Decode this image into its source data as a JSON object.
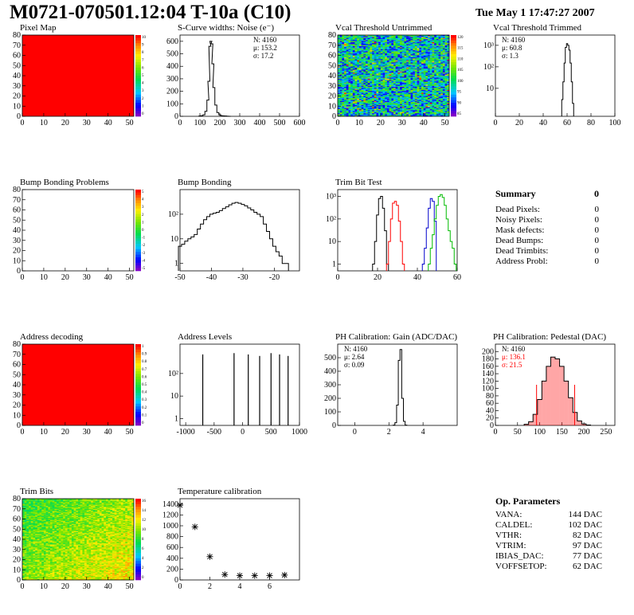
{
  "header": {
    "title": "M0721-070501.12:04 T-10a (C10)",
    "datestamp": "Tue May  1 17:47:27 2007"
  },
  "colors": {
    "map_red": "#ff0000",
    "red_series": "#ff0000",
    "blue_series": "#0000cc",
    "green_series": "#00bb00"
  },
  "summary": {
    "title": "Summary",
    "total": "0",
    "rows": [
      {
        "label": "Dead Pixels:",
        "value": "0"
      },
      {
        "label": "Noisy Pixels:",
        "value": "0"
      },
      {
        "label": "Mask defects:",
        "value": "0"
      },
      {
        "label": "Dead Bumps:",
        "value": "0"
      },
      {
        "label": "Dead Trimbits:",
        "value": "0"
      },
      {
        "label": "Address Probl:",
        "value": "0"
      }
    ]
  },
  "op_params": {
    "title": "Op. Parameters",
    "rows": [
      {
        "label": "VANA:",
        "value": "144 DAC"
      },
      {
        "label": "CALDEL:",
        "value": "102 DAC"
      },
      {
        "label": "VTHR:",
        "value": "82 DAC"
      },
      {
        "label": "VTRIM:",
        "value": "97 DAC"
      },
      {
        "label": "IBIAS_DAC:",
        "value": "77 DAC"
      },
      {
        "label": "VOFFSETOP:",
        "value": "62 DAC"
      }
    ]
  },
  "chart_data": [
    {
      "id": "pixel_map",
      "type": "heatmap",
      "title": "Pixel Map",
      "fill": "uniform",
      "color": "#ff0000",
      "xlim": [
        0,
        52
      ],
      "ylim": [
        0,
        80
      ],
      "x_ticks": [
        0,
        10,
        20,
        30,
        40,
        50
      ],
      "y_ticks": [
        0,
        10,
        20,
        30,
        40,
        50,
        60,
        70,
        80
      ],
      "zlim": [
        0,
        10
      ],
      "palette_ticks": [
        "10",
        "9",
        "8",
        "7",
        "6",
        "5",
        "4",
        "3",
        "2",
        "1",
        "0"
      ]
    },
    {
      "id": "noise",
      "type": "histogram",
      "title": "S-Curve widths: Noise (e⁻)",
      "xlim": [
        0,
        600
      ],
      "ylim": [
        0,
        650
      ],
      "x_ticks": [
        0,
        100,
        200,
        300,
        400,
        500,
        600
      ],
      "y_ticks": [
        0,
        100,
        200,
        300,
        400,
        500,
        600
      ],
      "stats": [
        "N: 4160",
        "μ: 153.2",
        "σ: 17.2"
      ],
      "series": [
        {
          "color": "#000000",
          "x": [
            100,
            110,
            120,
            130,
            140,
            145,
            150,
            155,
            160,
            165,
            170,
            180,
            190,
            200,
            210,
            220,
            230,
            240,
            250
          ],
          "values": [
            2,
            5,
            12,
            40,
            130,
            280,
            560,
            600,
            580,
            420,
            230,
            90,
            30,
            12,
            5,
            3,
            2,
            1,
            0
          ]
        }
      ]
    },
    {
      "id": "vcal_untrimmed",
      "type": "heatmap",
      "title": "Vcal Threshold Untrimmed",
      "fill": "noise",
      "xlim": [
        0,
        52
      ],
      "ylim": [
        0,
        80
      ],
      "x_ticks": [
        0,
        10,
        20,
        30,
        40,
        50
      ],
      "y_ticks": [
        0,
        10,
        20,
        30,
        40,
        50,
        60,
        70,
        80
      ],
      "zlim": [
        0,
        120
      ],
      "palette_ticks": [
        "120",
        "115",
        "110",
        "105",
        "100",
        "95",
        "90",
        "85"
      ]
    },
    {
      "id": "vcal_trimmed",
      "type": "histogram",
      "title": "Vcal Threshold Trimmed",
      "log": true,
      "xlim": [
        0,
        100
      ],
      "ylim": [
        0.5,
        3000
      ],
      "x_ticks": [
        0,
        20,
        40,
        60,
        80,
        100
      ],
      "y_ticks": [
        {
          "v": 10,
          "t": "10"
        },
        {
          "v": 100,
          "t": "10²"
        },
        {
          "v": 1000,
          "t": "10³"
        }
      ],
      "stats": [
        "N: 4160",
        "μ: 60.8",
        "σ:  1.3"
      ],
      "series": [
        {
          "color": "#000000",
          "x": [
            56,
            57,
            58,
            59,
            60,
            61,
            62,
            63,
            64,
            65
          ],
          "values": [
            3,
            20,
            150,
            800,
            1200,
            1000,
            600,
            150,
            20,
            2
          ]
        }
      ]
    },
    {
      "id": "bump_problems",
      "type": "heatmap",
      "title": "Bump Bonding Problems",
      "fill": "empty",
      "xlim": [
        0,
        52
      ],
      "ylim": [
        0,
        80
      ],
      "x_ticks": [
        0,
        10,
        20,
        30,
        40,
        50
      ],
      "y_ticks": [
        0,
        10,
        20,
        30,
        40,
        50,
        60,
        70,
        80
      ],
      "zlim": [
        -5,
        5
      ],
      "palette_ticks": [
        "5",
        "4",
        "3",
        "2",
        "1",
        "0",
        "-1",
        "-2",
        "-3",
        "-4",
        "-5"
      ]
    },
    {
      "id": "bump_bonding",
      "type": "histogram",
      "title": "Bump Bonding",
      "log": true,
      "xlim": [
        -50,
        -12
      ],
      "ylim": [
        0.5,
        1000
      ],
      "x_ticks": [
        -50,
        -40,
        -30,
        -20
      ],
      "y_ticks": [
        {
          "v": 1,
          "t": "1"
        },
        {
          "v": 10,
          "t": "10"
        },
        {
          "v": 100,
          "t": "10²"
        }
      ],
      "series": [
        {
          "color": "#000000",
          "x": [
            -50,
            -49,
            -48,
            -47,
            -46,
            -45,
            -44,
            -43,
            -42,
            -41,
            -40,
            -39,
            -38,
            -37,
            -36,
            -35,
            -34,
            -33,
            -32,
            -31,
            -30,
            -29,
            -28,
            -27,
            -26,
            -25,
            -24,
            -23,
            -22,
            -21,
            -20,
            -19,
            -18,
            -17,
            -16
          ],
          "values": [
            5,
            6,
            8,
            10,
            12,
            15,
            25,
            40,
            60,
            80,
            100,
            110,
            120,
            140,
            170,
            200,
            240,
            280,
            300,
            280,
            250,
            220,
            180,
            150,
            120,
            100,
            80,
            40,
            20,
            10,
            5,
            3,
            2,
            1,
            1
          ]
        }
      ]
    },
    {
      "id": "trim_bit_test",
      "type": "histogram",
      "title": "Trim Bit Test",
      "log": true,
      "xlim": [
        0,
        60
      ],
      "ylim": [
        0.5,
        2000
      ],
      "x_ticks": [
        0,
        20,
        40,
        60
      ],
      "y_ticks": [
        {
          "v": 1,
          "t": "1"
        },
        {
          "v": 10,
          "t": "10"
        },
        {
          "v": 100,
          "t": "10²"
        },
        {
          "v": 1000,
          "t": "10³"
        }
      ],
      "series": [
        {
          "color": "#000000",
          "x": [
            18,
            19,
            20,
            21,
            22,
            23,
            24,
            25
          ],
          "values": [
            1,
            10,
            150,
            800,
            1000,
            300,
            30,
            1
          ]
        },
        {
          "color": "#ff0000",
          "x": [
            25,
            26,
            27,
            28,
            29,
            30,
            31,
            32,
            33
          ],
          "values": [
            1,
            10,
            100,
            500,
            600,
            400,
            80,
            10,
            1
          ]
        },
        {
          "color": "#0000cc",
          "x": [
            43,
            44,
            45,
            46,
            47,
            48,
            49
          ],
          "values": [
            1,
            5,
            40,
            300,
            800,
            600,
            80
          ]
        },
        {
          "color": "#00bb00",
          "x": [
            46,
            47,
            48,
            49,
            50,
            51,
            52,
            53,
            54,
            55,
            56,
            57,
            58,
            59
          ],
          "values": [
            1,
            5,
            20,
            100,
            400,
            1000,
            1200,
            900,
            400,
            100,
            30,
            10,
            5,
            1
          ]
        }
      ]
    },
    {
      "id": "address_decoding",
      "type": "heatmap",
      "title": "Address decoding",
      "fill": "uniform",
      "color": "#ff0000",
      "xlim": [
        0,
        52
      ],
      "ylim": [
        0,
        80
      ],
      "x_ticks": [
        0,
        10,
        20,
        30,
        40,
        50
      ],
      "y_ticks": [
        0,
        10,
        20,
        30,
        40,
        50,
        60,
        70,
        80
      ],
      "zlim": [
        0,
        1
      ],
      "palette_ticks": [
        "1",
        "0.9",
        "0.8",
        "0.7",
        "0.6",
        "0.5",
        "0.4",
        "0.3",
        "0.2",
        "0.1",
        "0"
      ]
    },
    {
      "id": "address_levels",
      "type": "histogram",
      "title": "Address Levels",
      "log": true,
      "xlim": [
        -1100,
        1000
      ],
      "ylim": [
        0.5,
        2000
      ],
      "x_ticks": [
        -1000,
        -500,
        0,
        500,
        1000
      ],
      "y_ticks": [
        {
          "v": 1,
          "t": "1"
        },
        {
          "v": 10,
          "t": "10"
        },
        {
          "v": 100,
          "t": "10²"
        }
      ],
      "spikes": [
        {
          "x": -700,
          "v": 700
        },
        {
          "x": -150,
          "v": 800
        },
        {
          "x": 100,
          "v": 700
        },
        {
          "x": 300,
          "v": 600
        },
        {
          "x": 500,
          "v": 800
        },
        {
          "x": 650,
          "v": 700
        },
        {
          "x": 800,
          "v": 600
        }
      ]
    },
    {
      "id": "ph_gain",
      "type": "histogram",
      "title": "PH Calibration: Gain (ADC/DAC)",
      "xlim": [
        -1,
        6
      ],
      "ylim": [
        0,
        600
      ],
      "x_ticks": [
        0,
        2,
        4
      ],
      "y_ticks": [
        0,
        100,
        200,
        300,
        400,
        500
      ],
      "stats": [
        "N: 4160",
        "μ: 2.64",
        "σ: 0.09"
      ],
      "series": [
        {
          "color": "#000000",
          "x": [
            2.3,
            2.4,
            2.5,
            2.6,
            2.7,
            2.8,
            2.9,
            3.0
          ],
          "values": [
            2,
            20,
            150,
            480,
            560,
            200,
            30,
            2
          ]
        }
      ]
    },
    {
      "id": "ph_pedestal",
      "type": "histogram",
      "title": "PH Calibration: Pedestal (DAC)",
      "xlim": [
        0,
        270
      ],
      "ylim": [
        0,
        220
      ],
      "x_ticks": [
        0,
        50,
        100,
        150,
        200,
        250
      ],
      "y_ticks": [
        0,
        20,
        40,
        60,
        80,
        100,
        120,
        140,
        160,
        180,
        200
      ],
      "stats": [
        "N: 4160",
        "μ: 136.1",
        "σ: 21.5"
      ],
      "stats_colors": [
        "#000000",
        "#ff0000",
        "#ff0000"
      ],
      "vlines": [
        93,
        179
      ],
      "series": [
        {
          "color": "#000000",
          "fill": "#ff0000",
          "x": [
            70,
            80,
            90,
            100,
            110,
            120,
            130,
            140,
            150,
            160,
            170,
            180,
            190,
            200,
            210
          ],
          "values": [
            3,
            10,
            30,
            70,
            120,
            160,
            185,
            180,
            160,
            120,
            75,
            35,
            12,
            4,
            1
          ]
        }
      ]
    },
    {
      "id": "trim_bits",
      "type": "heatmap",
      "title": "Trim Bits",
      "fill": "trim",
      "xlim": [
        0,
        52
      ],
      "ylim": [
        0,
        80
      ],
      "x_ticks": [
        0,
        10,
        20,
        30,
        40,
        50
      ],
      "y_ticks": [
        0,
        10,
        20,
        30,
        40,
        50,
        60,
        70,
        80
      ],
      "zlim": [
        0,
        16
      ],
      "palette_ticks": [
        "16",
        "14",
        "12",
        "10",
        "8",
        "6",
        "4",
        "2",
        "0"
      ]
    },
    {
      "id": "temperature",
      "type": "scatter",
      "title": "Temperature calibration",
      "xlim": [
        0,
        8
      ],
      "ylim": [
        0,
        1500
      ],
      "x_ticks": [
        0,
        2,
        4,
        6
      ],
      "y_ticks": [
        0,
        200,
        400,
        600,
        800,
        1000,
        1200,
        1400
      ],
      "points": [
        {
          "x": 0,
          "y": 1380
        },
        {
          "x": 1,
          "y": 980
        },
        {
          "x": 2,
          "y": 430
        },
        {
          "x": 3,
          "y": 100
        },
        {
          "x": 4,
          "y": 80
        },
        {
          "x": 5,
          "y": 80
        },
        {
          "x": 6,
          "y": 80
        },
        {
          "x": 7,
          "y": 90
        }
      ]
    }
  ]
}
